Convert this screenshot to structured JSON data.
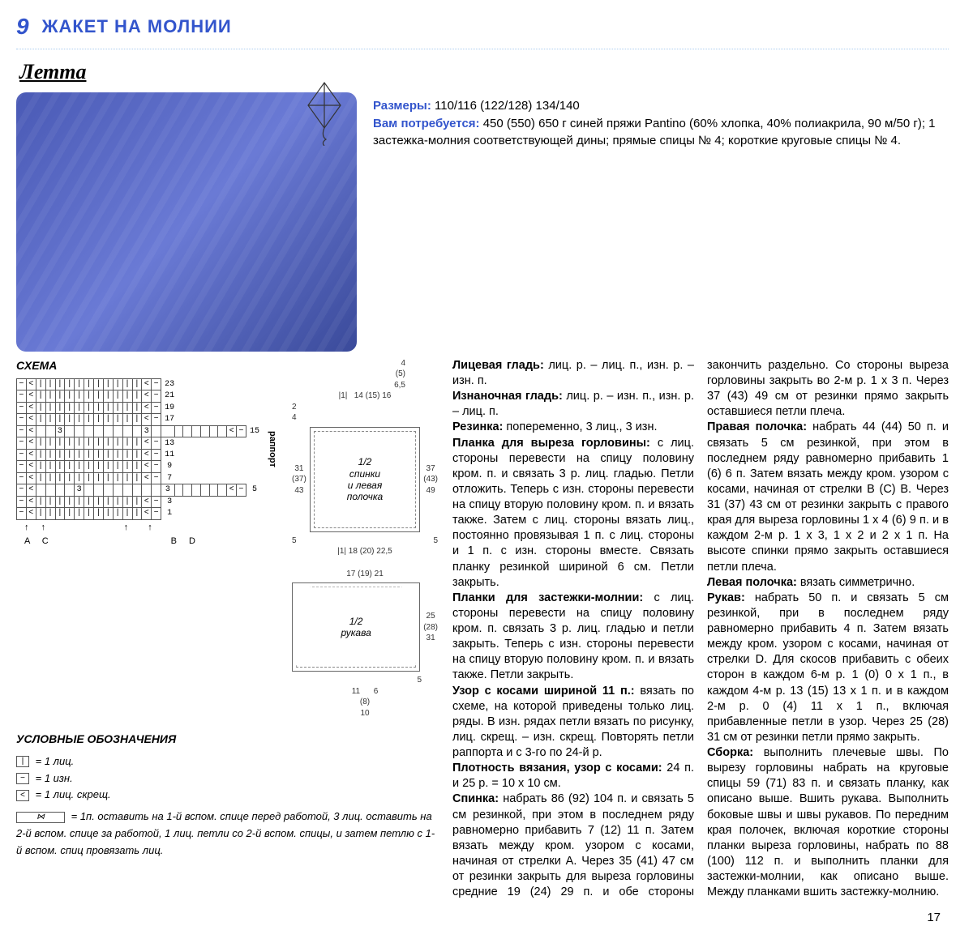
{
  "page_number": "9",
  "title": "ЖАКЕТ НА МОЛНИИ",
  "brand": "Летта",
  "footer_page": "17",
  "colors": {
    "accent": "#3355cc",
    "jacket": "#4a5ab5"
  },
  "intro": {
    "sizes_label": "Размеры:",
    "sizes": "110/116 (122/128) 134/140",
    "materials_label": "Вам потребуется:",
    "materials": "450 (550) 650 г синей пряжи Pantino (60% хлопка, 40% полиакрила, 90 м/50 г); 1 застежка-молния соответствующей дины; прямые спицы № 4; короткие круговые спицы № 4."
  },
  "schema": {
    "title": "СХЕМА",
    "row_labels": [
      "23",
      "21",
      "19",
      "17",
      "15",
      "13",
      "11",
      "9",
      "7",
      "5",
      "3",
      "1"
    ],
    "rapport_label": "раппорт",
    "arrows": "A C                B D",
    "pattern_rows": [
      "- < | | | | | | | | | | | < -",
      "- < | | | | | | | | | | | < -",
      "- < | | | | | | | | | | | < -",
      "- < | | | | | | | | | | | < -",
      "- <   3         3         < -",
      "- < | | | | | | | | | | | < -",
      "- < | | | | | | | | | | | < -",
      "- < | | | | | | | | | | | < -",
      "- < | | | | | | | | | | | < -",
      "- <     3         3       < -",
      "- < | | | | | | | | | | | < -",
      "- < | | | | | | | | | | | < -"
    ]
  },
  "schematics": {
    "top_dims": "4\n(5)\n6,5",
    "top_left": "|1|",
    "top_right": "14 (15) 16",
    "neck_left": "2\n4",
    "body_left": "31\n(37)\n43",
    "body_right": "37\n(43)\n49",
    "body_label": "1/2\nспинки\nи левая\nполочка",
    "body_rib": "5",
    "body_bottom": "|1|   18 (20) 22,5",
    "sleeve_top": "17 (19) 21",
    "sleeve_label": "1/2\nрукава",
    "sleeve_right": "25\n(28)\n31",
    "sleeve_rib": "5",
    "sleeve_bottom": "11      6\n(8)\n10"
  },
  "legend": {
    "title": "УСЛОВНЫЕ ОБОЗНАЧЕНИЯ",
    "items": [
      {
        "sym": "|",
        "text": "= 1 лиц."
      },
      {
        "sym": "−",
        "text": "= 1 изн."
      },
      {
        "sym": "<",
        "text": "= 1 лиц. скрещ."
      }
    ],
    "cable_text": "= 1п. оставить на 1-й вспом. спице перед работой, 3 лиц. оставить на 2-й вспом. спице за работой, 1 лиц. петли со 2-й вспом. спицы, и затем петлю с 1-й вспом. спиц провязать лиц."
  },
  "instructions": {
    "p1_label": "Лицевая гладь:",
    "p1": " лиц. р. – лиц. п., изн. р. – изн. п.",
    "p2_label": "Изнаночная гладь:",
    "p2": " лиц. р. – изн. п., изн. р. – лиц. п.",
    "p3_label": "Резинка:",
    "p3": " попеременно, 3 лиц., 3 изн.",
    "p4_label": "Планка для выреза горловины:",
    "p4": " с лиц. стороны перевести на спицу половину кром. п. и связать 3 р. лиц. гладью. Петли отложить. Теперь с изн. стороны перевести на спицу вторую половину кром. п. и вязать также. Затем с лиц. стороны вязать лиц., постоянно провязывая 1 п. с лиц. стороны и 1 п. с изн. стороны вместе. Связать планку резинкой шириной 6 см. Петли закрыть.",
    "p5_label": "Планки для застежки-молнии:",
    "p5": " с лиц. стороны перевести на спицу половину кром. п. связать 3 р. лиц. гладью и петли закрыть. Теперь с изн. стороны перевести на спицу вторую половину кром. п. и вязать также. Петли закрыть.",
    "p6_label": "Узор с косами шириной 11 п.:",
    "p6": " вязать по схеме, на которой приведены только лиц. ряды. В изн. рядах петли вязать по рисунку, лиц. скрещ. – изн. скрещ. Повторять петли раппорта и с 3-го по 24-й р.",
    "p7_label": "Плотность вязания, узор с косами:",
    "p7": " 24 п. и 25 р. = 10 х 10 см.",
    "p8_label": "Спинка:",
    "p8": " набрать 86 (92) 104 п. и связать 5 см резинкой, при этом в последнем ряду равномерно прибавить 7 (12) 11 п. Затем вязать между кром. узором с косами, начиная от стрелки А. Через 35 (41) 47 см от резинки закрыть для выреза горловины средние 19 (24) 29 п. и обе стороны закончить раздельно. Со стороны выреза горловины закрыть во 2-м р. 1 х 3 п. Через 37 (43) 49 см от резинки прямо закрыть оставшиеся петли плеча.",
    "p9_label": "Правая полочка:",
    "p9": " набрать 44 (44) 50 п. и связать 5 см резинкой, при этом в последнем ряду равномерно прибавить 1 (6) 6 п. Затем вязать между кром. узором с косами, начиная от стрелки В (С) В. Через 31 (37) 43 см от резинки закрыть с правого края для выреза горловины 1 х 4 (6) 9 п. и в каждом 2-м р. 1 х 3, 1 х 2 и 2 х 1 п. На высоте спинки прямо закрыть оставшиеся петли плеча.",
    "p10_label": "Левая полочка:",
    "p10": " вязать симметрично.",
    "p11_label": "Рукав:",
    "p11": " набрать 50 п. и связать 5 см резинкой, при в последнем ряду равномерно прибавить 4 п. Затем вязать между кром. узором с косами, начиная от стрелки D. Для скосов прибавить с обеих сторон в каждом 6-м р. 1 (0) 0 х 1 п., в каждом 4-м р. 13 (15) 13 х 1 п. и в каждом 2-м р. 0 (4) 11 х 1 п., включая прибавленные петли в узор. Через 25 (28) 31 см от резинки петли прямо закрыть.",
    "p12_label": "Сборка:",
    "p12": " выполнить плечевые швы. По вырезу горловины набрать на круговые спицы 59 (71) 83 п. и связать планку, как описано выше. Вшить рукава. Выполнить боковые швы и швы рукавов. По передним края полочек, включая короткие стороны планки выреза горловины, набрать по 88 (100) 112 п. и выполнить планки для застежки-молнии, как описано выше. Между планками вшить застежку-молнию."
  }
}
